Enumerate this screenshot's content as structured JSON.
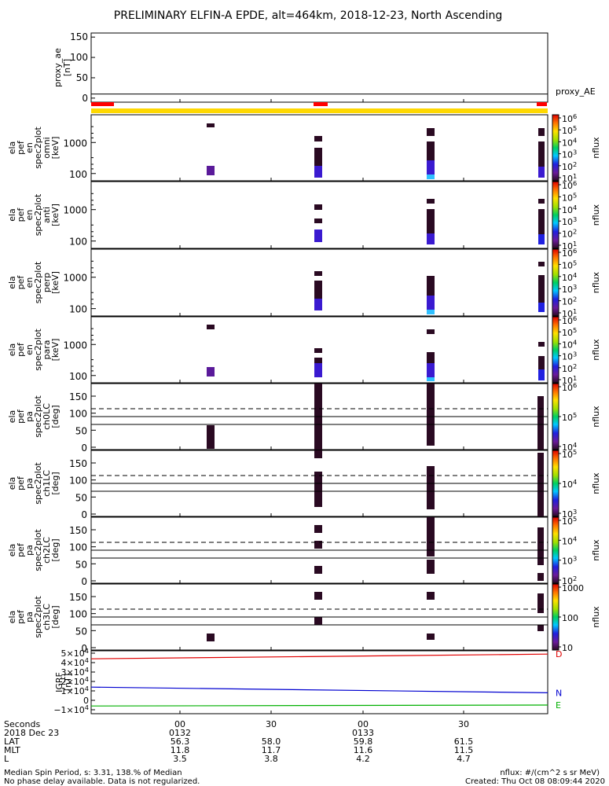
{
  "title": "PRELIMINARY ELFIN-A EPDE, alt=464km, 2018-12-23, North Ascending",
  "chart_data": [
    {
      "type": "line",
      "name": "proxy_ae",
      "ylabel": [
        "proxy_ae",
        "[nT]"
      ],
      "ylim": [
        -10,
        160
      ],
      "yticks": [
        "150",
        "100",
        "50",
        "0"
      ],
      "ytick_values": [
        150,
        100,
        50,
        0
      ],
      "series": [
        {
          "name": "proxy_AE",
          "values": [
            10,
            10
          ]
        }
      ],
      "legend": "proxy_AE"
    },
    {
      "type": "heatmap",
      "name": "ela_pef_en_spec2plot_omni",
      "ylabel": [
        "ela",
        "pef",
        "en",
        "spec2plot",
        "omni",
        "[keV]"
      ],
      "yscale": "log",
      "yticks": [
        "1000",
        "100"
      ],
      "colorbar": {
        "label": "nflux",
        "ticks": [
          "10^6",
          "10^5",
          "10^4",
          "10^3",
          "10^2",
          "10^1"
        ]
      }
    },
    {
      "type": "heatmap",
      "name": "ela_pef_en_spec2plot_anti",
      "ylabel": [
        "ela",
        "pef",
        "en",
        "spec2plot",
        "anti",
        "[keV]"
      ],
      "yscale": "log",
      "yticks": [
        "1000",
        "100"
      ],
      "colorbar": {
        "label": "nflux",
        "ticks": [
          "10^6",
          "10^5",
          "10^4",
          "10^3",
          "10^2",
          "10^1"
        ]
      }
    },
    {
      "type": "heatmap",
      "name": "ela_pef_en_spec2plot_perp",
      "ylabel": [
        "ela",
        "pef",
        "en",
        "spec2plot",
        "perp",
        "[keV]"
      ],
      "yscale": "log",
      "yticks": [
        "1000",
        "100"
      ],
      "colorbar": {
        "label": "nflux",
        "ticks": [
          "10^6",
          "10^5",
          "10^4",
          "10^3",
          "10^2",
          "10^1"
        ]
      }
    },
    {
      "type": "heatmap",
      "name": "ela_pef_en_spec2plot_para",
      "ylabel": [
        "ela",
        "pef",
        "en",
        "spec2plot",
        "para",
        "[keV]"
      ],
      "yscale": "log",
      "yticks": [
        "1000",
        "100"
      ],
      "colorbar": {
        "label": "nflux",
        "ticks": [
          "10^6",
          "10^5",
          "10^4",
          "10^3",
          "10^2",
          "10^1"
        ]
      }
    },
    {
      "type": "heatmap",
      "name": "ela_pef_pa_spec2plot_ch0LC",
      "ylabel": [
        "ela",
        "pef",
        "pa",
        "spec2plot",
        "ch0LC",
        "[deg]"
      ],
      "ylim": [
        0,
        180
      ],
      "yticks": [
        "150",
        "100",
        "50",
        "0"
      ],
      "ytick_values": [
        150,
        100,
        50,
        0
      ],
      "colorbar": {
        "label": "nflux",
        "ticks": [
          "10^6",
          "10^5",
          "10^4"
        ]
      }
    },
    {
      "type": "heatmap",
      "name": "ela_pef_pa_spec2plot_ch1LC",
      "ylabel": [
        "ela",
        "pef",
        "pa",
        "spec2plot",
        "ch1LC",
        "[deg]"
      ],
      "ylim": [
        0,
        180
      ],
      "yticks": [
        "150",
        "100",
        "50",
        "0"
      ],
      "ytick_values": [
        150,
        100,
        50,
        0
      ],
      "colorbar": {
        "label": "nflux",
        "ticks": [
          "10^5",
          "10^4",
          "10^3"
        ]
      }
    },
    {
      "type": "heatmap",
      "name": "ela_pef_pa_spec2plot_ch2LC",
      "ylabel": [
        "ela",
        "pef",
        "pa",
        "spec2plot",
        "ch2LC",
        "[deg]"
      ],
      "ylim": [
        0,
        180
      ],
      "yticks": [
        "150",
        "100",
        "50",
        "0"
      ],
      "ytick_values": [
        150,
        100,
        50,
        0
      ],
      "colorbar": {
        "label": "nflux",
        "ticks": [
          "10^5",
          "10^4",
          "10^3",
          "10^2"
        ]
      }
    },
    {
      "type": "heatmap",
      "name": "ela_pef_pa_spec2plot_ch3LC",
      "ylabel": [
        "ela",
        "pef",
        "pa",
        "spec2plot",
        "ch3LC",
        "[deg]"
      ],
      "ylim": [
        0,
        180
      ],
      "yticks": [
        "150",
        "100",
        "50",
        "0"
      ],
      "ytick_values": [
        150,
        100,
        50,
        0
      ],
      "colorbar": {
        "label": "nflux",
        "ticks": [
          "1000",
          "100",
          "10"
        ]
      }
    },
    {
      "type": "line",
      "name": "IGRF",
      "ylabel": [
        "IGRF",
        "[nT]"
      ],
      "yticks": [
        "5×10^4",
        "4×10^4",
        "3×10^4",
        "2×10^4",
        "1×10^4",
        "0",
        "−1×10^4"
      ],
      "series": [
        {
          "name": "D",
          "color": "#e00000",
          "values": [
            44000,
            49000
          ]
        },
        {
          "name": "N",
          "color": "#0000d0",
          "values": [
            14000,
            8000
          ]
        },
        {
          "name": "E",
          "color": "#00b000",
          "values": [
            -6000,
            -5000
          ]
        }
      ]
    }
  ],
  "xaxis": {
    "row_labels": [
      "Seconds",
      "2018 Dec 23",
      "LAT",
      "MLT",
      "L"
    ],
    "seconds": [
      "00",
      "30",
      "00",
      "30"
    ],
    "hhmm": [
      "0132",
      "0133"
    ],
    "lat": [
      "56.3",
      "58.0",
      "59.8",
      "61.5"
    ],
    "mlt": [
      "11.8",
      "11.7",
      "11.6",
      "11.5"
    ],
    "l": [
      "3.5",
      "3.8",
      "4.2",
      "4.7"
    ]
  },
  "footer": {
    "left_line1": "Median Spin Period, s: 3.31, 138.% of Median",
    "left_line2": "No phase delay available. Data is not regularized.",
    "right_line1": "nflux: #/(cm^2 s sr MeV)",
    "right_line2": "Created: Thu Oct 08 08:09:44 2020"
  },
  "colors": {
    "sunlight_bar": "#ffd800",
    "eclipse_bar": "#ff0000",
    "flux_high": "#2a0a22"
  }
}
